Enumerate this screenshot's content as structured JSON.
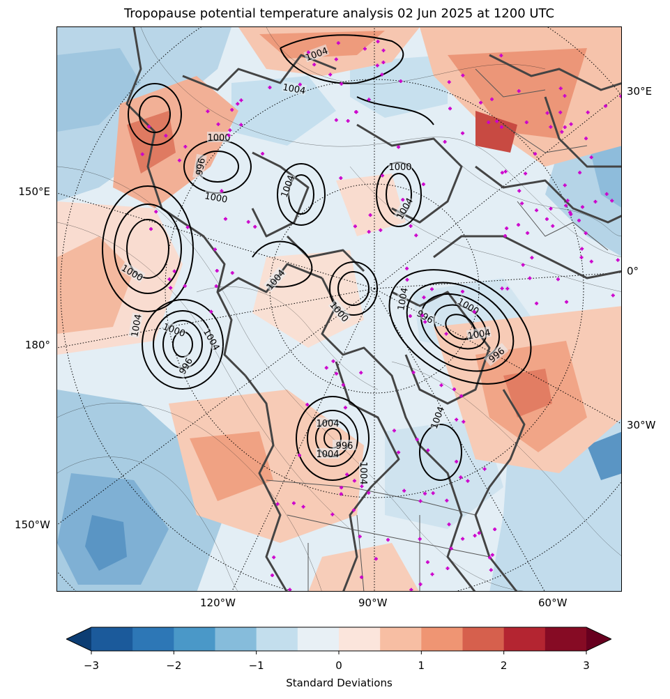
{
  "title": "Tropopause potential temperature analysis 02 Jun 2025 at 1200 UTC",
  "map": {
    "projection": "north polar stereographic",
    "longitude_labels": {
      "right": [
        "30°E",
        "0°",
        "30°W"
      ],
      "left": [
        "150°E",
        "180°",
        "150°W"
      ],
      "bottom": [
        "120°W",
        "90°W",
        "60°W"
      ]
    },
    "contour_labels": [
      "1004",
      "1004",
      "1000",
      "996",
      "1000",
      "1004",
      "1000",
      "1004",
      "1000",
      "1004",
      "1000",
      "1004",
      "996",
      "1004",
      "1000",
      "1004",
      "996",
      "1000",
      "1004",
      "996",
      "1004",
      "1004",
      "1004",
      "1004",
      "996"
    ],
    "colors": {
      "contour": "#000000",
      "coastline": "#444444",
      "station_marker": "#cc00cc",
      "graticule": "#000000"
    }
  },
  "colorbar": {
    "label": "Standard Deviations",
    "ticks": [
      "−3",
      "−2",
      "−1",
      "0",
      "1",
      "2",
      "3"
    ],
    "range": [
      -3,
      3
    ],
    "extend": "both",
    "colors": [
      "#0c3d73",
      "#1b5a9b",
      "#2d77b6",
      "#4a98c8",
      "#86bcdb",
      "#c3deed",
      "#e8f0f5",
      "#fbe5dc",
      "#f7bea3",
      "#ef9573",
      "#d6604d",
      "#b42531",
      "#860b24",
      "#67001f"
    ]
  }
}
